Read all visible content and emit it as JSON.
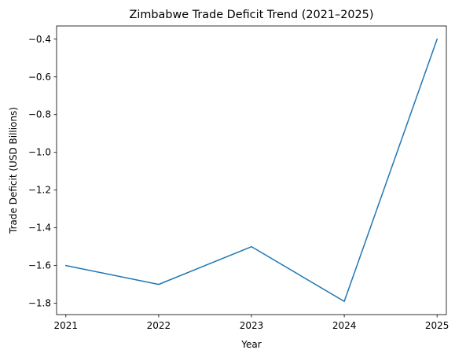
{
  "chart_data": {
    "type": "line",
    "title": "Zimbabwe Trade Deficit Trend (2021–2025)",
    "xlabel": "Year",
    "ylabel": "Trade Deficit (USD Billions)",
    "x": [
      2021,
      2022,
      2023,
      2024,
      2025
    ],
    "x_tick_labels": [
      "2021",
      "2022",
      "2023",
      "2024",
      "2025"
    ],
    "y_ticks": [
      -1.8,
      -1.6,
      -1.4,
      -1.2,
      -1.0,
      -0.8,
      -0.6,
      -0.4
    ],
    "y_tick_labels": [
      "−1.8",
      "−1.6",
      "−1.4",
      "−1.2",
      "−1.0",
      "−0.8",
      "−0.6",
      "−0.4"
    ],
    "xlim": [
      2020.9,
      2025.1
    ],
    "ylim": [
      -1.86,
      -0.33
    ],
    "grid": false,
    "series": [
      {
        "values": [
          -1.6,
          -1.7,
          -1.5,
          -1.79,
          -0.4
        ],
        "color": "#1f77b4"
      }
    ]
  }
}
